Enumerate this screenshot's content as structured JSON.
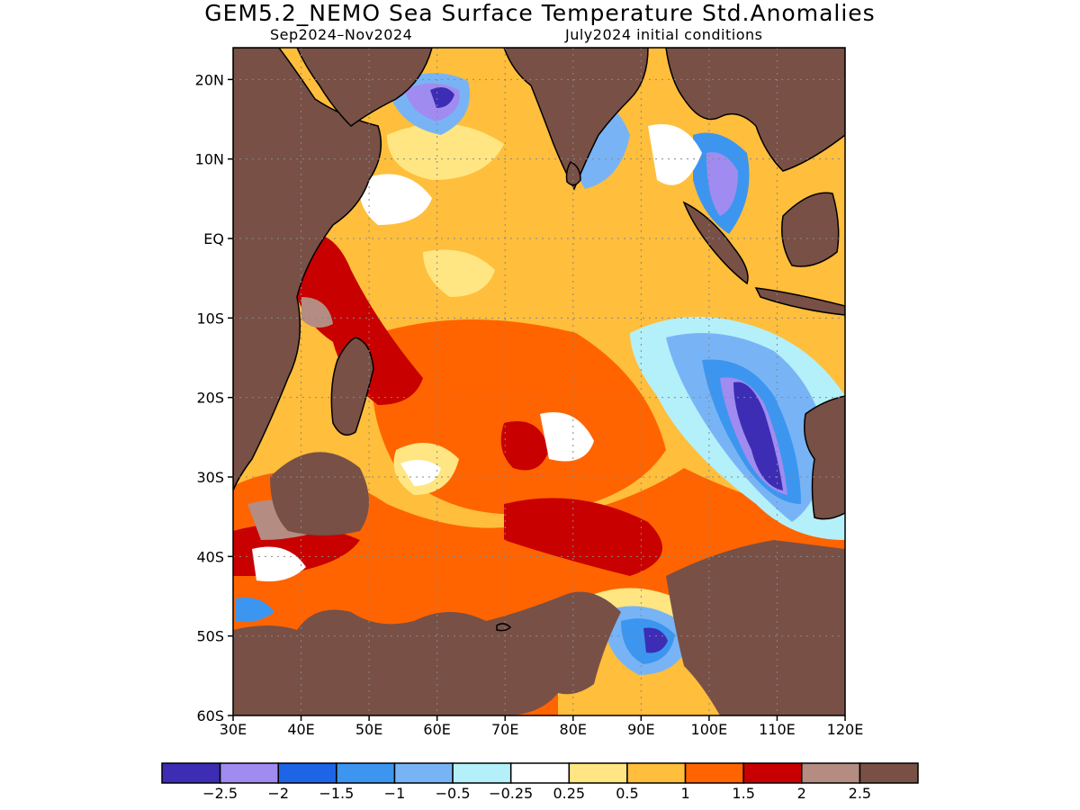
{
  "title": "GEM5.2_NEMO Sea Surface Temperature Std.Anomalies",
  "subtitle_left": "Sep2024–Nov2024",
  "subtitle_right": "July2024 initial conditions",
  "axes": {
    "lon_labels": [
      "30E",
      "40E",
      "50E",
      "60E",
      "70E",
      "80E",
      "90E",
      "100E",
      "110E",
      "120E"
    ],
    "lat_labels": [
      "20N",
      "10N",
      "EQ",
      "10S",
      "20S",
      "30S",
      "40S",
      "50S",
      "60S"
    ],
    "lon_range": [
      30,
      120
    ],
    "lat_range": [
      -60,
      24
    ],
    "grid": "dotted"
  },
  "legend": {
    "placement": "bottom",
    "colors": [
      "#3c2db4",
      "#a08cf0",
      "#1e64e6",
      "#3c96f0",
      "#78b4f5",
      "#b4f0fa",
      "#ffffff",
      "#ffe682",
      "#ffbe3c",
      "#ff6400",
      "#c80000",
      "#b48c82",
      "#785046"
    ],
    "labels": [
      "−2.5",
      "−2",
      "−1.5",
      "−1",
      "−0.5",
      "−0.25",
      "0.25",
      "0.5",
      "1",
      "1.5",
      "2",
      "2.5"
    ]
  },
  "colors": {
    "land": "#785046",
    "ocean_base": "#ffbe3c"
  }
}
